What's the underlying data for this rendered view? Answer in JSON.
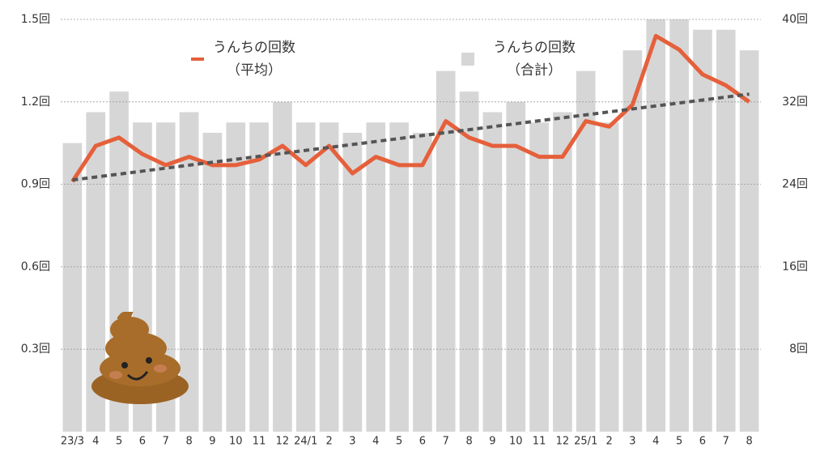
{
  "chart_data": {
    "type": "bar",
    "categories": [
      "23/3",
      "4",
      "5",
      "6",
      "7",
      "8",
      "9",
      "10",
      "11",
      "12",
      "24/1",
      "2",
      "3",
      "4",
      "5",
      "6",
      "7",
      "8",
      "9",
      "10",
      "11",
      "12",
      "25/1",
      "2",
      "3",
      "4",
      "5",
      "6",
      "7",
      "8"
    ],
    "series": [
      {
        "name": "うんちの回数（平均）",
        "type": "line",
        "color": "#e5603b",
        "values": [
          0.91,
          1.04,
          1.07,
          1.01,
          0.97,
          1.0,
          0.97,
          0.97,
          0.99,
          1.04,
          0.97,
          1.04,
          0.94,
          1.0,
          0.97,
          0.97,
          1.13,
          1.07,
          1.04,
          1.04,
          1.0,
          1.0,
          1.13,
          1.11,
          1.19,
          1.44,
          1.39,
          1.3,
          1.26,
          1.2
        ]
      },
      {
        "name": "うんちの回数（合計）",
        "type": "bar",
        "axis": "y2",
        "color": "#d6d6d6",
        "values": [
          28,
          31,
          33,
          30,
          30,
          31,
          29,
          30,
          30,
          32,
          30,
          30,
          29,
          30,
          30,
          29,
          35,
          33,
          31,
          32,
          30,
          31,
          35,
          30,
          37,
          40,
          40,
          39,
          39,
          37
        ]
      }
    ],
    "ylim": [
      0,
      1.5
    ],
    "yticks": [
      {
        "value": 0.3,
        "label": "0.3回"
      },
      {
        "value": 0.6,
        "label": "0.6回"
      },
      {
        "value": 0.9,
        "label": "0.9回"
      },
      {
        "value": 1.2,
        "label": "1.2回"
      },
      {
        "value": 1.5,
        "label": "1.5回"
      }
    ],
    "y2lim": [
      0,
      40
    ],
    "y2ticks": [
      {
        "value": 8,
        "label": "8回"
      },
      {
        "value": 16,
        "label": "16回"
      },
      {
        "value": 24,
        "label": "24回"
      },
      {
        "value": 32,
        "label": "32回"
      },
      {
        "value": 40,
        "label": "40回"
      }
    ],
    "grid": true,
    "trendline": true
  }
}
